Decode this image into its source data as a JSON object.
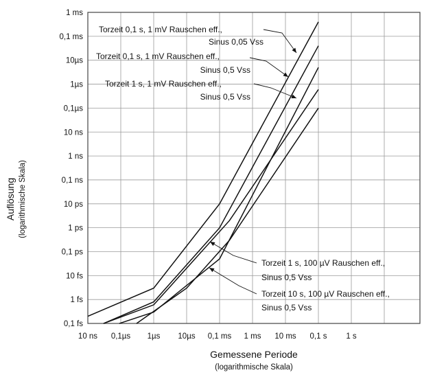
{
  "chart_data": {
    "type": "line",
    "title": "",
    "xlabel": "Gemessene Periode",
    "xlabel_sub": "(logarithmische Skala)",
    "ylabel": "Auflösung",
    "ylabel_sub": "(logarithmische Skala)",
    "xscale": "log",
    "yscale": "log",
    "x_ticks": [
      "10 ns",
      "0,1µs",
      "1µs",
      "10µs",
      "0,1 ms",
      "1 ms",
      "10 ms",
      "0,1 s",
      "1 s"
    ],
    "y_ticks": [
      "1 ms",
      "0,1 ms",
      "10µs",
      "1µs",
      "0,1µs",
      "10 ns",
      "1 ns",
      "0,1 ns",
      "10 ps",
      "1 ps",
      "0,1 ps",
      "10 fs",
      "1 fs",
      "0,1 fs"
    ],
    "xlim": [
      "10 ns",
      "10 s"
    ],
    "ylim": [
      "0,1 fs",
      "1 ms"
    ],
    "grid": true,
    "x_unit_seconds": [
      1e-08,
      1e-07,
      1e-06,
      1e-05,
      0.0001,
      0.001,
      0.01,
      0.1,
      1
    ],
    "series": [
      {
        "name": "Torzeit 0,1 s, 1 mV Rauschen eff., Sinus 0,05 Vss",
        "x": [
          1e-08,
          1e-06,
          0.0001,
          0.1
        ],
        "y": [
          2e-16,
          3e-15,
          1e-11,
          0.0004
        ]
      },
      {
        "name": "Torzeit 0,1 s, 1 mV Rauschen eff., Sinus 0,5 Vss",
        "x": [
          3e-08,
          1e-06,
          0.0001,
          0.1
        ],
        "y": [
          1e-16,
          8e-16,
          1e-12,
          4e-05
        ]
      },
      {
        "name": "Torzeit 1 s, 1 mV Rauschen eff., Sinus 0,5 Vss",
        "x": [
          9e-08,
          1e-06,
          0.0001,
          0.1
        ],
        "y": [
          1e-16,
          3e-16,
          5e-14,
          5e-06
        ]
      },
      {
        "name": "Torzeit 1 s, 100 µV Rauschen eff., Sinus 0,5 Vss",
        "x": [
          3e-08,
          1e-06,
          0.0002,
          0.1
        ],
        "y": [
          1e-16,
          6e-16,
          2e-12,
          6e-07
        ]
      },
      {
        "name": "Torzeit 10 s, 100 µV Rauschen eff., Sinus 0,5 Vss",
        "x": [
          3e-07,
          1e-05,
          0.0002,
          0.1
        ],
        "y": [
          1e-16,
          3e-15,
          3e-13,
          1e-07
        ]
      }
    ],
    "annotations": [
      {
        "lines": [
          "Torzeit 0,1 s, 1 mV Rauschen eff.,",
          "Sinus 0,05 Vss"
        ],
        "series": 0
      },
      {
        "lines": [
          "Torzeit 0,1 s, 1 mV Rauschen eff.,",
          "Sinus 0,5 Vss"
        ],
        "series": 1
      },
      {
        "lines": [
          "Torzeit 1 s, 1 mV Rauschen eff.,",
          "Sinus 0,5 Vss"
        ],
        "series": 2
      },
      {
        "lines": [
          "Torzeit 1 s, 100 µV Rauschen eff.,",
          "Sinus 0,5 Vss"
        ],
        "series": 3
      },
      {
        "lines": [
          "Torzeit 10 s, 100 µV Rauschen eff.,",
          "Sinus 0,5 Vss"
        ],
        "series": 4
      }
    ]
  }
}
